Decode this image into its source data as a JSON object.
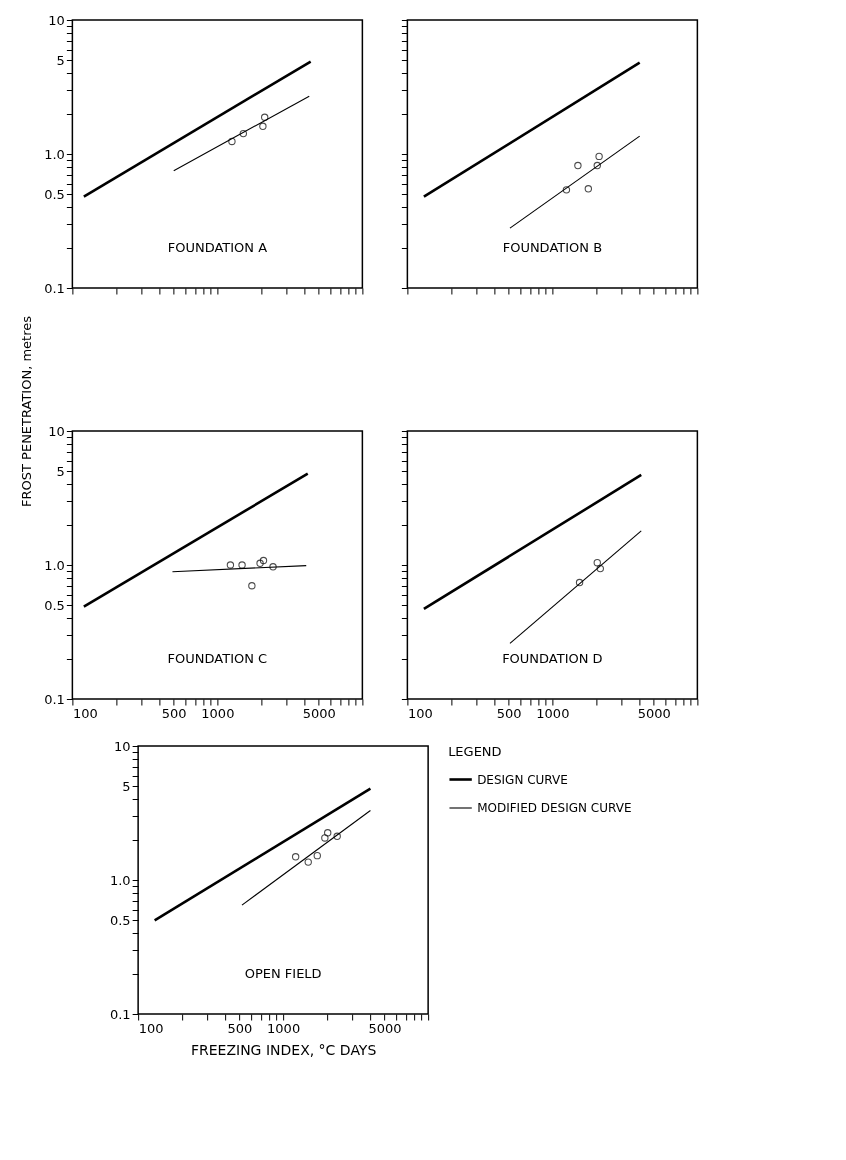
{
  "chart_data": [
    {
      "type": "line",
      "annotations": [
        "FOUNDATION A"
      ],
      "xlim": [
        100,
        10000
      ],
      "ylim": [
        0.1,
        10
      ],
      "log": "xy",
      "tick_labels": "y",
      "xticks": [
        {
          "value": 100,
          "label": null
        },
        {
          "value": 200,
          "label": null
        },
        {
          "value": 300,
          "label": null
        },
        {
          "value": 400,
          "label": null
        },
        {
          "value": 500,
          "label": null
        },
        {
          "value": 600,
          "label": null
        },
        {
          "value": 700,
          "label": null
        },
        {
          "value": 800,
          "label": null
        },
        {
          "value": 900,
          "label": null
        },
        {
          "value": 1000,
          "label": null
        },
        {
          "value": 2000,
          "label": null
        },
        {
          "value": 3000,
          "label": null
        },
        {
          "value": 4000,
          "label": null
        },
        {
          "value": 5000,
          "label": null
        },
        {
          "value": 6000,
          "label": null
        },
        {
          "value": 7000,
          "label": null
        },
        {
          "value": 8000,
          "label": null
        },
        {
          "value": 9000,
          "label": null
        },
        {
          "value": 10000,
          "label": null
        }
      ],
      "yticks": [
        0.1,
        {
          "value": 0.2,
          "label": null
        },
        {
          "value": 0.3,
          "label": null
        },
        {
          "value": 0.4,
          "label": null
        },
        0.5,
        {
          "value": 0.6,
          "label": null
        },
        {
          "value": 0.7,
          "label": null
        },
        {
          "value": 0.8,
          "label": null
        },
        {
          "value": 0.9,
          "label": null
        },
        {
          "value": 1,
          "label": "1.0"
        },
        {
          "value": 2,
          "label": null
        },
        {
          "value": 3,
          "label": null
        },
        {
          "value": 4,
          "label": null
        },
        5,
        {
          "value": 6,
          "label": null
        },
        {
          "value": 7,
          "label": null
        },
        {
          "value": 8,
          "label": null
        },
        {
          "value": 9,
          "label": null
        },
        10
      ],
      "series": [
        {
          "color": "#000000",
          "x": [
            120,
            4400
          ],
          "values": [
            0.48,
            4.9
          ]
        },
        {
          "color": "#000000",
          "x": [
            500,
            4300
          ],
          "values": [
            0.75,
            2.7
          ]
        },
        {
          "type": "scatter",
          "color": "#000000",
          "x": [
            1260,
            1510,
            2060,
            2120
          ],
          "values": [
            1.24,
            1.42,
            1.61,
            1.88
          ]
        }
      ]
    },
    {
      "type": "line",
      "annotations": [
        "FOUNDATION B"
      ],
      "xlim": [
        100,
        10000
      ],
      "ylim": [
        0.1,
        10
      ],
      "log": "xy",
      "tick_labels": false,
      "xticks": [
        {
          "value": 100,
          "label": null
        },
        {
          "value": 200,
          "label": null
        },
        {
          "value": 300,
          "label": null
        },
        {
          "value": 400,
          "label": null
        },
        {
          "value": 500,
          "label": null
        },
        {
          "value": 600,
          "label": null
        },
        {
          "value": 700,
          "label": null
        },
        {
          "value": 800,
          "label": null
        },
        {
          "value": 900,
          "label": null
        },
        {
          "value": 1000,
          "label": null
        },
        {
          "value": 2000,
          "label": null
        },
        {
          "value": 3000,
          "label": null
        },
        {
          "value": 4000,
          "label": null
        },
        {
          "value": 5000,
          "label": null
        },
        {
          "value": 6000,
          "label": null
        },
        {
          "value": 7000,
          "label": null
        },
        {
          "value": 8000,
          "label": null
        },
        {
          "value": 9000,
          "label": null
        },
        {
          "value": 10000,
          "label": null
        }
      ],
      "yticks": [
        {
          "value": 0.1,
          "label": null
        },
        {
          "value": 0.2,
          "label": null
        },
        {
          "value": 0.3,
          "label": null
        },
        {
          "value": 0.4,
          "label": null
        },
        {
          "value": 0.5,
          "label": null
        },
        {
          "value": 0.6,
          "label": null
        },
        {
          "value": 0.7,
          "label": null
        },
        {
          "value": 0.8,
          "label": null
        },
        {
          "value": 0.9,
          "label": null
        },
        {
          "value": 1,
          "label": null
        },
        {
          "value": 2,
          "label": null
        },
        {
          "value": 3,
          "label": null
        },
        {
          "value": 4,
          "label": null
        },
        {
          "value": 5,
          "label": null
        },
        {
          "value": 6,
          "label": null
        },
        {
          "value": 7,
          "label": null
        },
        {
          "value": 8,
          "label": null
        },
        {
          "value": 9,
          "label": null
        },
        {
          "value": 10,
          "label": null
        }
      ],
      "series": [
        {
          "color": "#000000",
          "x": [
            130,
            4000
          ],
          "values": [
            0.48,
            4.8
          ]
        },
        {
          "color": "#000000",
          "x": [
            510,
            4000
          ],
          "values": [
            0.28,
            1.36
          ]
        },
        {
          "type": "scatter",
          "color": "#000000",
          "x": [
            1250,
            1500,
            1770,
            2040,
            2100
          ],
          "values": [
            0.54,
            0.82,
            0.55,
            0.82,
            0.96
          ]
        }
      ]
    },
    {
      "type": "line",
      "annotations": [
        "FOUNDATION C"
      ],
      "ylabel": "FROST PENETRATION, metres",
      "xlim": [
        100,
        10000
      ],
      "ylim": [
        0.1,
        10
      ],
      "log": "xy",
      "xticks": [
        100,
        {
          "value": 200,
          "label": null
        },
        {
          "value": 300,
          "label": null
        },
        {
          "value": 400,
          "label": null
        },
        500,
        {
          "value": 600,
          "label": null
        },
        {
          "value": 700,
          "label": null
        },
        {
          "value": 800,
          "label": null
        },
        {
          "value": 900,
          "label": null
        },
        1000,
        {
          "value": 2000,
          "label": null
        },
        {
          "value": 3000,
          "label": null
        },
        {
          "value": 4000,
          "label": null
        },
        5000,
        {
          "value": 6000,
          "label": null
        },
        {
          "value": 7000,
          "label": null
        },
        {
          "value": 8000,
          "label": null
        },
        {
          "value": 9000,
          "label": null
        },
        {
          "value": 10000,
          "label": null
        }
      ],
      "yticks": [
        0.1,
        {
          "value": 0.2,
          "label": null
        },
        {
          "value": 0.3,
          "label": null
        },
        {
          "value": 0.4,
          "label": null
        },
        0.5,
        {
          "value": 0.6,
          "label": null
        },
        {
          "value": 0.7,
          "label": null
        },
        {
          "value": 0.8,
          "label": null
        },
        {
          "value": 0.9,
          "label": null
        },
        {
          "value": 1,
          "label": "1.0"
        },
        {
          "value": 2,
          "label": null
        },
        {
          "value": 3,
          "label": null
        },
        {
          "value": 4,
          "label": null
        },
        5,
        {
          "value": 6,
          "label": null
        },
        {
          "value": 7,
          "label": null
        },
        {
          "value": 8,
          "label": null
        },
        {
          "value": 9,
          "label": null
        },
        10
      ],
      "series": [
        {
          "color": "#000000",
          "x": [
            120,
            4200
          ],
          "values": [
            0.49,
            4.8
          ]
        },
        {
          "color": "#000000",
          "x": [
            490,
            4100
          ],
          "values": [
            0.89,
            0.99
          ]
        },
        {
          "type": "scatter",
          "color": "#000000",
          "x": [
            1230,
            1480,
            1730,
            1970,
            2080,
            2420
          ],
          "values": [
            1.0,
            1.0,
            0.7,
            1.03,
            1.08,
            0.97
          ]
        }
      ]
    },
    {
      "type": "line",
      "annotations": [
        "FOUNDATION D"
      ],
      "xlim": [
        100,
        10000
      ],
      "ylim": [
        0.1,
        10
      ],
      "log": "xy",
      "tick_labels": "x",
      "xticks": [
        100,
        {
          "value": 200,
          "label": null
        },
        {
          "value": 300,
          "label": null
        },
        {
          "value": 400,
          "label": null
        },
        500,
        {
          "value": 600,
          "label": null
        },
        {
          "value": 700,
          "label": null
        },
        {
          "value": 800,
          "label": null
        },
        {
          "value": 900,
          "label": null
        },
        1000,
        {
          "value": 2000,
          "label": null
        },
        {
          "value": 3000,
          "label": null
        },
        {
          "value": 4000,
          "label": null
        },
        5000,
        {
          "value": 6000,
          "label": null
        },
        {
          "value": 7000,
          "label": null
        },
        {
          "value": 8000,
          "label": null
        },
        {
          "value": 9000,
          "label": null
        },
        {
          "value": 10000,
          "label": null
        }
      ],
      "yticks": [
        {
          "value": 0.1,
          "label": null
        },
        {
          "value": 0.2,
          "label": null
        },
        {
          "value": 0.3,
          "label": null
        },
        {
          "value": 0.4,
          "label": null
        },
        {
          "value": 0.5,
          "label": null
        },
        {
          "value": 0.6,
          "label": null
        },
        {
          "value": 0.7,
          "label": null
        },
        {
          "value": 0.8,
          "label": null
        },
        {
          "value": 0.9,
          "label": null
        },
        {
          "value": 1,
          "label": null
        },
        {
          "value": 2,
          "label": null
        },
        {
          "value": 3,
          "label": null
        },
        {
          "value": 4,
          "label": null
        },
        {
          "value": 5,
          "label": null
        },
        {
          "value": 6,
          "label": null
        },
        {
          "value": 7,
          "label": null
        },
        {
          "value": 8,
          "label": null
        },
        {
          "value": 9,
          "label": null
        },
        {
          "value": 10,
          "label": null
        }
      ],
      "series": [
        {
          "color": "#000000",
          "x": [
            130,
            4100
          ],
          "values": [
            0.47,
            4.7
          ]
        },
        {
          "color": "#000000",
          "x": [
            510,
            4100
          ],
          "values": [
            0.26,
            1.8
          ]
        },
        {
          "type": "scatter",
          "color": "#000000",
          "x": [
            1540,
            2040,
            2140
          ],
          "values": [
            0.74,
            1.04,
            0.94
          ]
        }
      ]
    },
    {
      "type": "line",
      "annotations": [
        "OPEN FIELD"
      ],
      "xlabel": "FREEZING INDEX, °C DAYS",
      "legend_title": "LEGEND",
      "legend": "right",
      "xlim": [
        100,
        10000
      ],
      "ylim": [
        0.1,
        10
      ],
      "log": "xy",
      "xticks": [
        100,
        {
          "value": 200,
          "label": null
        },
        {
          "value": 300,
          "label": null
        },
        {
          "value": 400,
          "label": null
        },
        500,
        {
          "value": 600,
          "label": null
        },
        {
          "value": 700,
          "label": null
        },
        {
          "value": 800,
          "label": null
        },
        {
          "value": 900,
          "label": null
        },
        1000,
        {
          "value": 2000,
          "label": null
        },
        {
          "value": 3000,
          "label": null
        },
        {
          "value": 4000,
          "label": null
        },
        5000,
        {
          "value": 6000,
          "label": null
        },
        {
          "value": 7000,
          "label": null
        },
        {
          "value": 8000,
          "label": null
        },
        {
          "value": 9000,
          "label": null
        },
        {
          "value": 10000,
          "label": null
        }
      ],
      "yticks": [
        0.1,
        {
          "value": 0.2,
          "label": null
        },
        {
          "value": 0.3,
          "label": null
        },
        {
          "value": 0.4,
          "label": null
        },
        0.5,
        {
          "value": 0.6,
          "label": null
        },
        {
          "value": 0.7,
          "label": null
        },
        {
          "value": 0.8,
          "label": null
        },
        {
          "value": 0.9,
          "label": null
        },
        {
          "value": 1,
          "label": "1.0"
        },
        {
          "value": 2,
          "label": null
        },
        {
          "value": 3,
          "label": null
        },
        {
          "value": 4,
          "label": null
        },
        5,
        {
          "value": 6,
          "label": null
        },
        {
          "value": 7,
          "label": null
        },
        {
          "value": 8,
          "label": null
        },
        {
          "value": 9,
          "label": null
        },
        10
      ],
      "series": [
        {
          "name": "DESIGN CURVE",
          "color": "#000000",
          "x": [
            130,
            4000
          ],
          "values": [
            0.5,
            4.8
          ]
        },
        {
          "name": "MODIFIED DESIGN CURVE",
          "color": "#000000",
          "x": [
            520,
            4000
          ],
          "values": [
            0.65,
            3.3
          ]
        },
        {
          "type": "scatter",
          "color": "#000000",
          "x": [
            1220,
            1490,
            1720,
            1940,
            2030,
            2360
          ],
          "values": [
            1.49,
            1.36,
            1.52,
            2.06,
            2.25,
            2.12
          ]
        }
      ]
    }
  ]
}
